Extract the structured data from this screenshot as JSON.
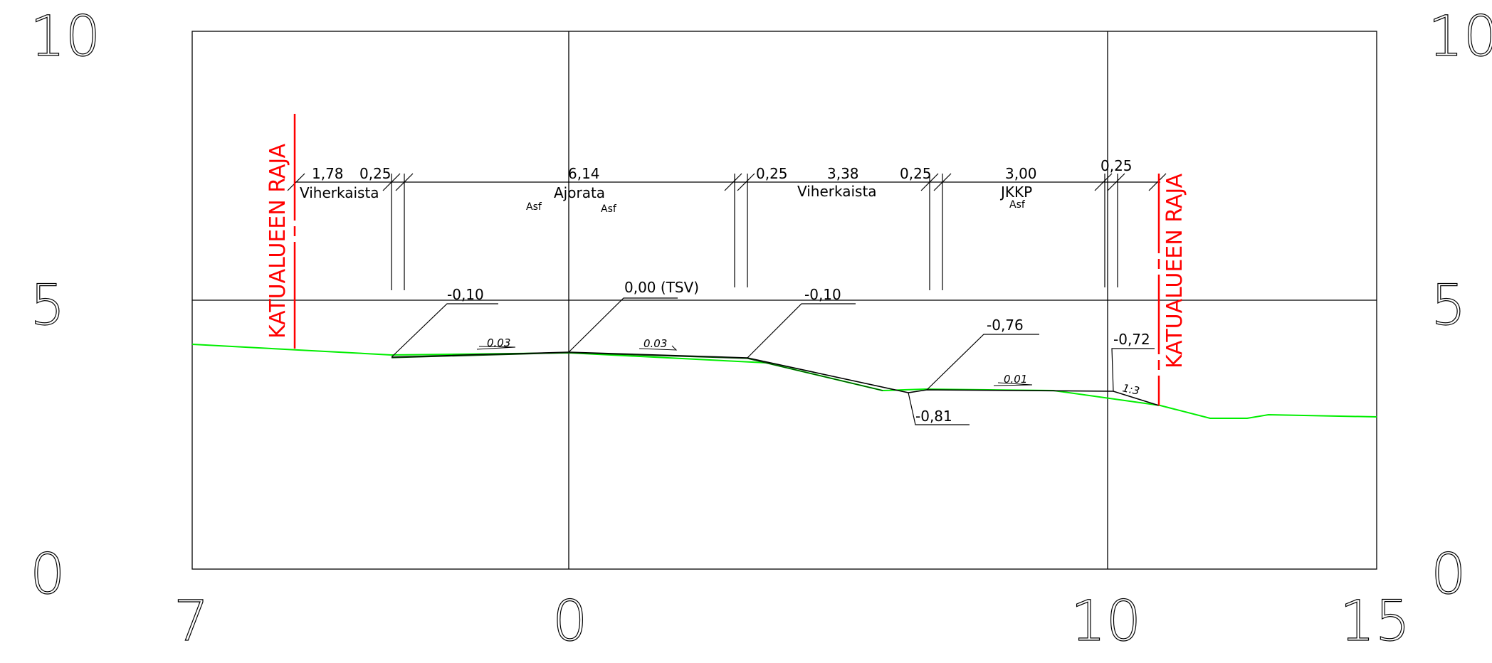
{
  "axes": {
    "y_ticks": [
      "10",
      "5",
      "0"
    ],
    "x_ticks": [
      "7",
      "0",
      "10",
      "15"
    ]
  },
  "border_label": "KATUALUEEN RAJA",
  "dimensions": [
    "1,78",
    "0,25",
    "6,14",
    "0,25",
    "3,38",
    "0,25",
    "3,00",
    "0,25"
  ],
  "zones": {
    "viherkaista_1": "Viherkaista",
    "ajorata": "Ajorata",
    "viherkaista_2": "Viherkaista",
    "jkpp": "JKKP"
  },
  "materials": {
    "asf": "Asf"
  },
  "elevations": {
    "left_edge": "-0,10",
    "center": "0,00 (TSV)",
    "right_edge": "-0,10",
    "ditch_bottom": "-0,81",
    "path_left": "-0,76",
    "path_right": "-0,72"
  },
  "slopes": {
    "left_lane": "0.03",
    "right_lane": "0.03",
    "path": "0.01",
    "embankment": "1:3"
  },
  "colors": {
    "design_line": "#000000",
    "ground_line": "#00ee00",
    "border": "#ff0000",
    "frame": "#000000"
  }
}
